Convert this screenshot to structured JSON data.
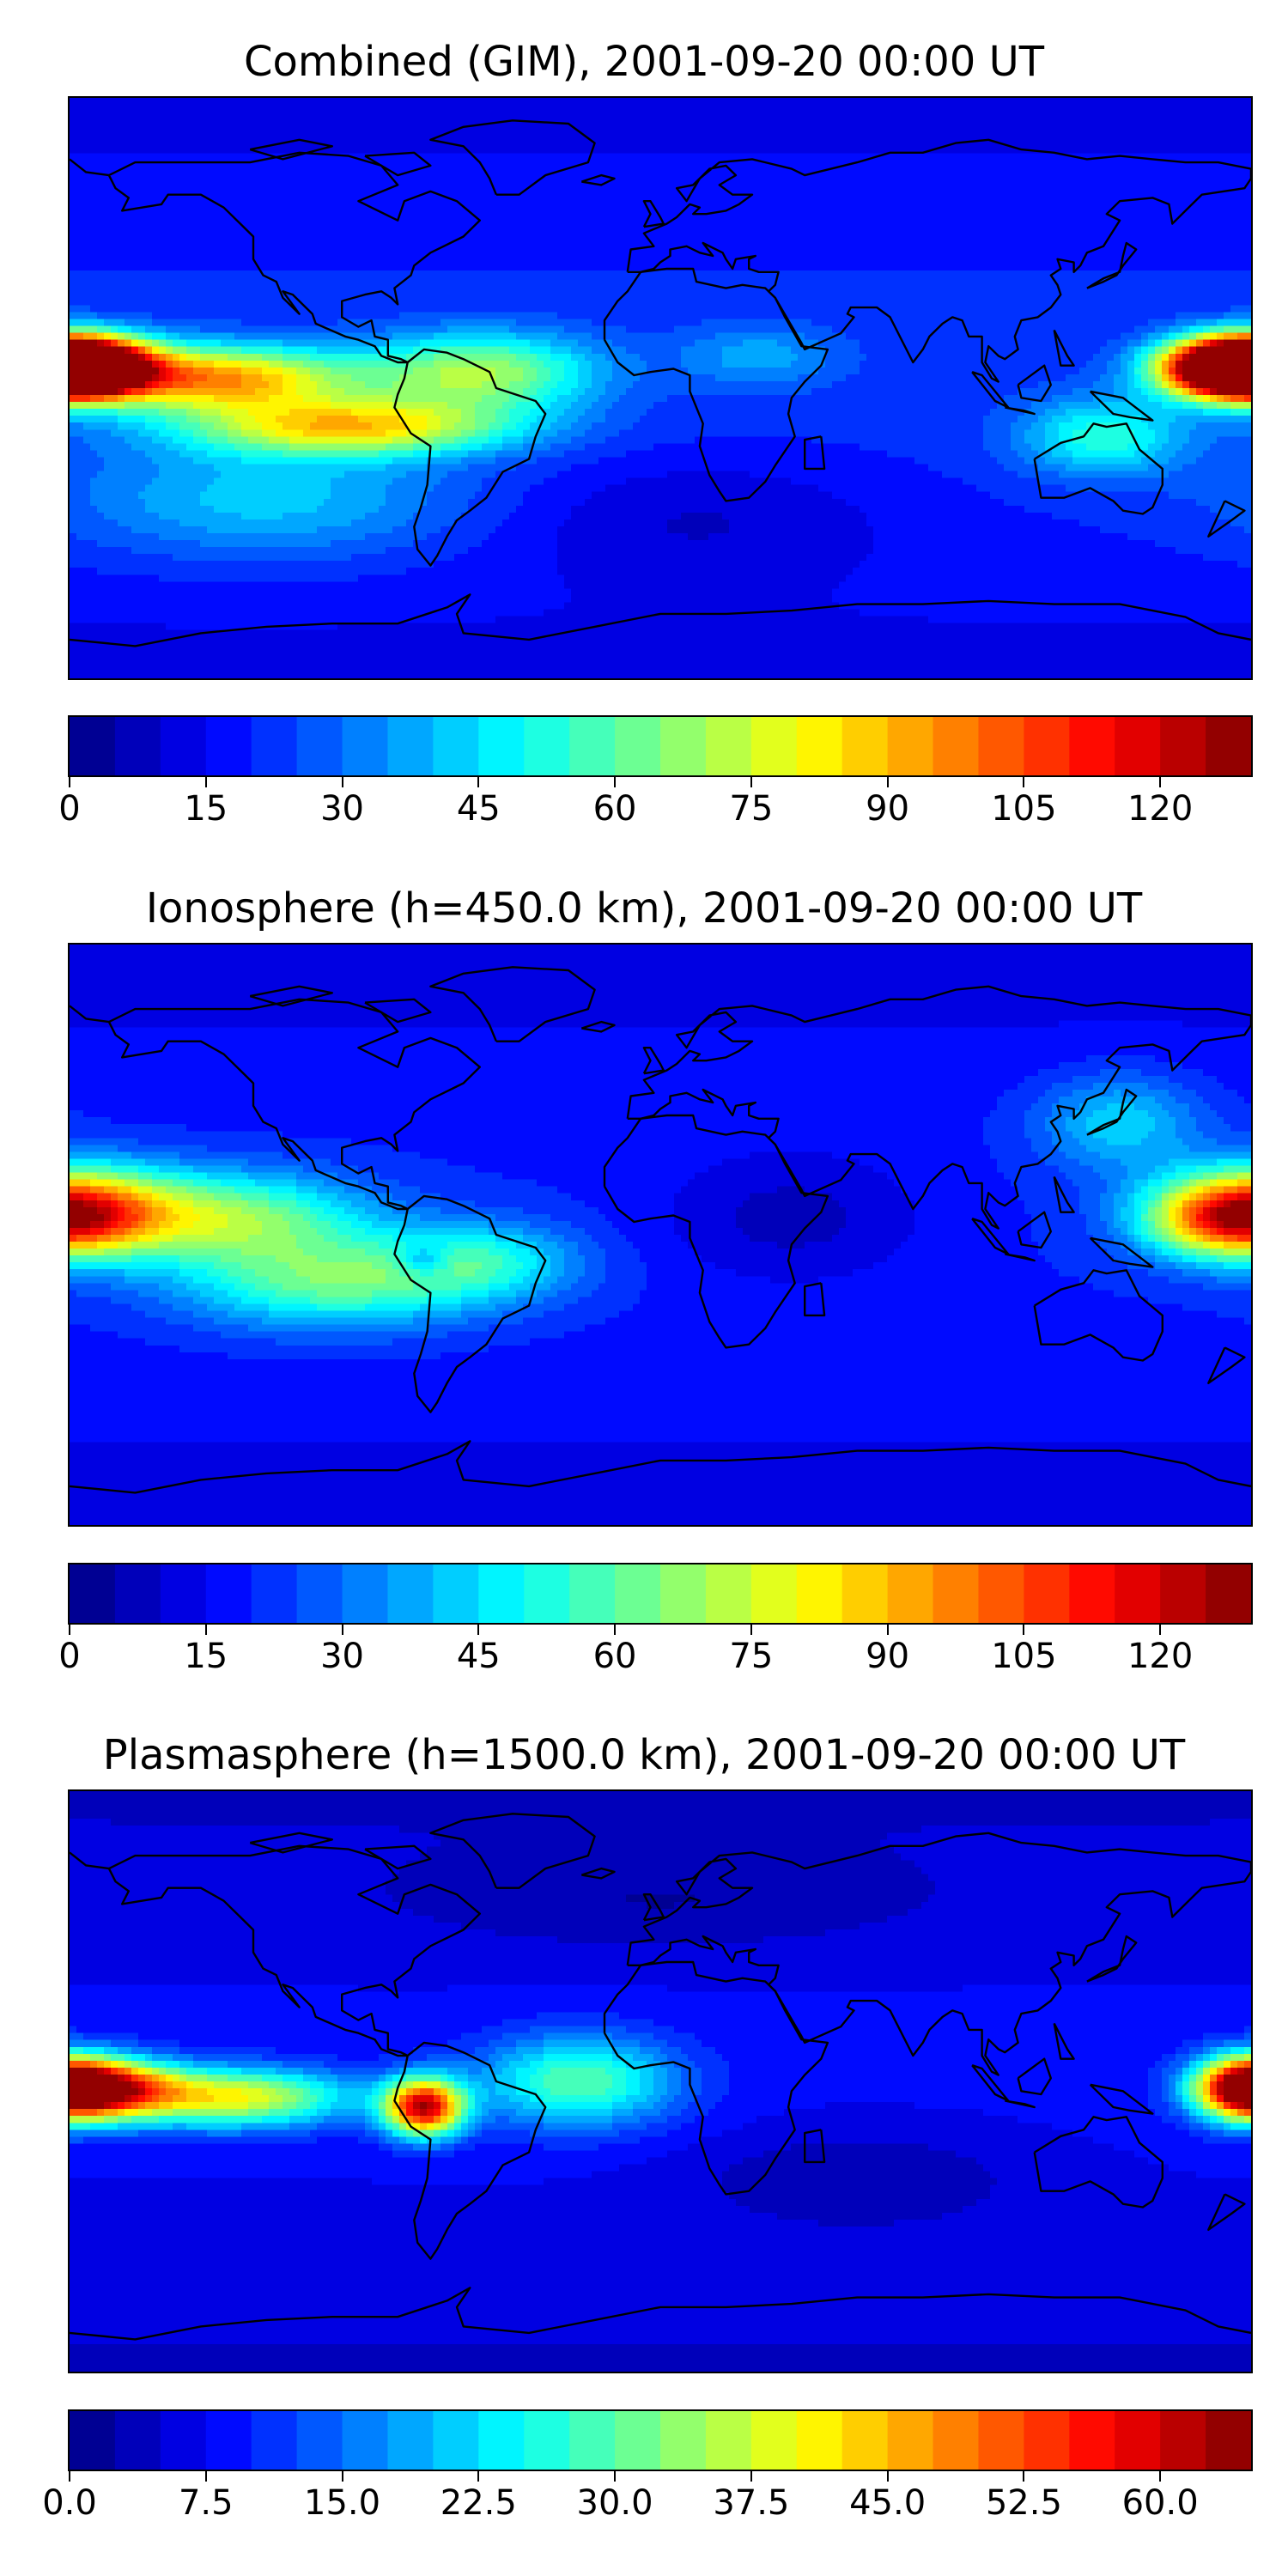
{
  "chart_data": [
    {
      "type": "heatmap",
      "title": "Combined (GIM), 2001-09-20 00:00 UT",
      "colormap": "jet",
      "colorbar": {
        "min": 0,
        "max": 130,
        "levels": 26,
        "ticks": [
          "0",
          "15",
          "30",
          "45",
          "60",
          "75",
          "90",
          "105",
          "120"
        ],
        "tick_values": [
          0,
          15,
          30,
          45,
          60,
          75,
          90,
          105,
          120
        ]
      },
      "field": {
        "base": 22,
        "features": [
          {
            "lon": -178,
            "lat": 7,
            "amp": 118,
            "slon": 22,
            "slat": 9
          },
          {
            "lon": -135,
            "lat": 3,
            "amp": 72,
            "slon": 40,
            "slat": 10
          },
          {
            "lon": -95,
            "lat": -12,
            "amp": 62,
            "slon": 50,
            "slat": 9
          },
          {
            "lon": -55,
            "lat": 5,
            "amp": 48,
            "slon": 35,
            "slat": 12
          },
          {
            "lon": 175,
            "lat": 6,
            "amp": 110,
            "slon": 22,
            "slat": 9
          },
          {
            "lon": 135,
            "lat": -15,
            "amp": 32,
            "slon": 25,
            "slat": 12
          },
          {
            "lon": -120,
            "lat": -35,
            "amp": 22,
            "slon": 60,
            "slat": 18
          },
          {
            "lon": 30,
            "lat": 10,
            "amp": 16,
            "slon": 25,
            "slat": 10
          },
          {
            "lon": 10,
            "lat": -40,
            "amp": -10,
            "slon": 60,
            "slat": 20
          }
        ]
      }
    },
    {
      "type": "heatmap",
      "title": "Ionosphere  (h=450.0 km), 2001-09-20 00:00 UT",
      "colormap": "jet",
      "colorbar": {
        "min": 0,
        "max": 130,
        "levels": 26,
        "ticks": [
          "0",
          "15",
          "30",
          "45",
          "60",
          "75",
          "90",
          "105",
          "120"
        ],
        "tick_values": [
          0,
          15,
          30,
          45,
          60,
          75,
          90,
          105,
          120
        ]
      },
      "field": {
        "base": 20,
        "features": [
          {
            "lon": -175,
            "lat": 8,
            "amp": 55,
            "slon": 30,
            "slat": 14
          },
          {
            "lon": -130,
            "lat": 5,
            "amp": 45,
            "slon": 40,
            "slat": 14
          },
          {
            "lon": -100,
            "lat": -15,
            "amp": 40,
            "slon": 45,
            "slat": 14
          },
          {
            "lon": -55,
            "lat": -8,
            "amp": 28,
            "slon": 30,
            "slat": 12
          },
          {
            "lon": -72,
            "lat": -8,
            "amp": -20,
            "slon": 8,
            "slat": 5
          },
          {
            "lon": 172,
            "lat": 5,
            "amp": 60,
            "slon": 25,
            "slat": 12
          },
          {
            "lon": 140,
            "lat": 35,
            "amp": 25,
            "slon": 25,
            "slat": 15
          },
          {
            "lon": 40,
            "lat": 5,
            "amp": -12,
            "slon": 40,
            "slat": 20
          }
        ]
      }
    },
    {
      "type": "heatmap",
      "title": "Plasmasphere (h=1500.0 km), 2001-09-20 00:00 UT",
      "colormap": "jet",
      "colorbar": {
        "min": 0,
        "max": 65,
        "levels": 26,
        "ticks": [
          "0.0",
          "7.5",
          "15.0",
          "22.5",
          "30.0",
          "37.5",
          "45.0",
          "52.5",
          "60.0"
        ],
        "tick_values": [
          0,
          7.5,
          15,
          22.5,
          30,
          37.5,
          45,
          52.5,
          60
        ]
      },
      "field": {
        "base": 8,
        "features": [
          {
            "lon": -170,
            "lat": -2,
            "amp": 45,
            "slon": 22,
            "slat": 9
          },
          {
            "lon": -130,
            "lat": -5,
            "amp": 32,
            "slon": 35,
            "slat": 9
          },
          {
            "lon": -72,
            "lat": -8,
            "amp": 52,
            "slon": 12,
            "slat": 9
          },
          {
            "lon": -25,
            "lat": 0,
            "amp": 22,
            "slon": 30,
            "slat": 14
          },
          {
            "lon": 178,
            "lat": -2,
            "amp": 40,
            "slon": 15,
            "slat": 10
          },
          {
            "lon": 60,
            "lat": -30,
            "amp": -5,
            "slon": 50,
            "slat": 15
          },
          {
            "lon": 0,
            "lat": 55,
            "amp": -4,
            "slon": 80,
            "slat": 15
          }
        ]
      }
    }
  ]
}
